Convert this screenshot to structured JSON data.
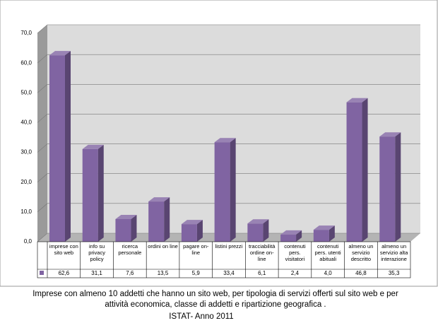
{
  "chart_data": {
    "type": "bar",
    "categories": [
      "imprese con sito web",
      "info su privacy policy",
      "ricerca personale",
      "ordini on line",
      "pagare on-line",
      "listini prezzi",
      "tracciabilità ordine on-line",
      "contenuti pers. visitatori",
      "contenuti pers. utenti abituali",
      "almeno un servizio descritto",
      "almeno un servizio alta interazione"
    ],
    "values": [
      62.6,
      31.1,
      7.6,
      13.5,
      5.9,
      33.4,
      6.1,
      2.4,
      4.0,
      46.8,
      35.3
    ],
    "value_labels": [
      "62,6",
      "31,1",
      "7,6",
      "13,5",
      "5,9",
      "33,4",
      "6,1",
      "2,4",
      "4,0",
      "46,8",
      "35,3"
    ],
    "color": "#8064a2",
    "ylim": [
      0,
      70
    ],
    "yticks": [
      {
        "value": 0,
        "label": "0,0"
      },
      {
        "value": 10,
        "label": "10,0"
      },
      {
        "value": 20,
        "label": "20,0"
      },
      {
        "value": 30,
        "label": "30,0"
      },
      {
        "value": 40,
        "label": "40,0"
      },
      {
        "value": 50,
        "label": "50,0"
      },
      {
        "value": 60,
        "label": "60,0"
      },
      {
        "value": 70,
        "label": "70,0"
      }
    ],
    "grid": true,
    "caption": "Imprese  con almeno 10 addetti che hanno un sito web, per tipologia  di servizi offerti sul sito web e per attività economica, classe di addetti e ripartizione geografica .",
    "source": "ISTAT- Anno 2011"
  }
}
